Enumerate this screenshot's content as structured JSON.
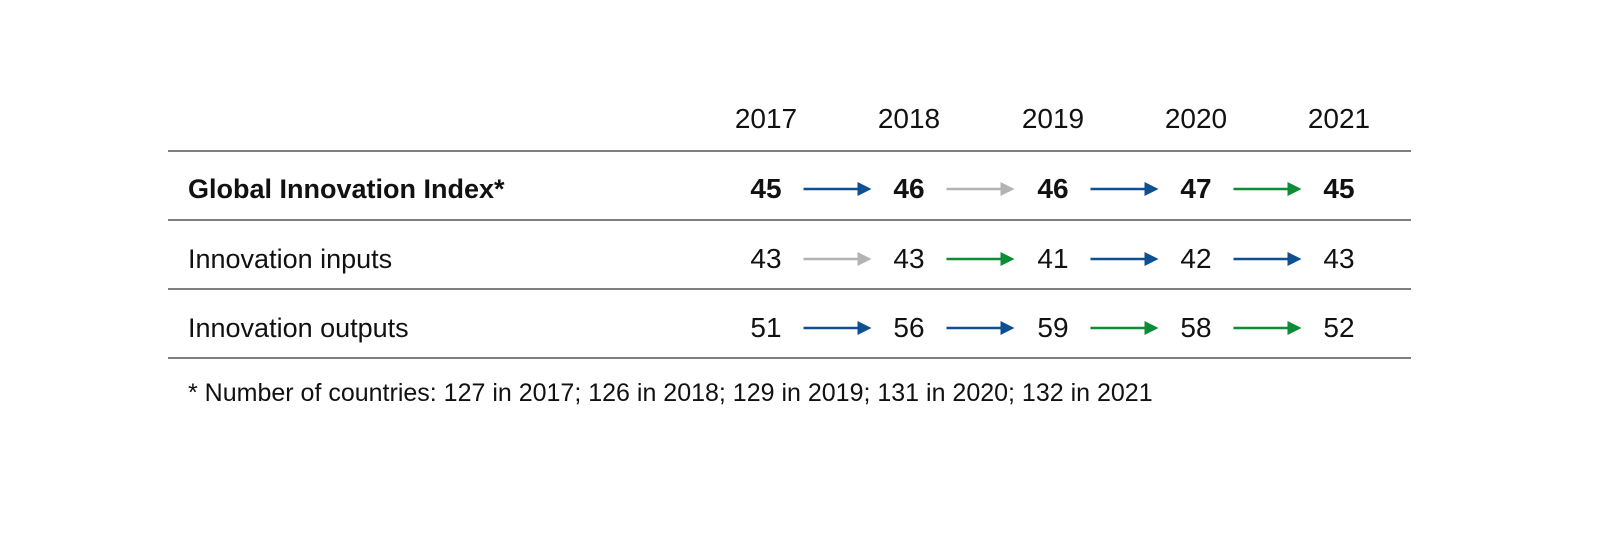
{
  "chart_data": {
    "type": "table",
    "title": "",
    "years": [
      "2017",
      "2018",
      "2019",
      "2020",
      "2021"
    ],
    "rows": [
      {
        "label": "Global Innovation Index*",
        "bold": true,
        "values": [
          45,
          46,
          46,
          47,
          45
        ],
        "arrows": [
          "blue",
          "gray",
          "blue",
          "green"
        ]
      },
      {
        "label": "Innovation inputs",
        "bold": false,
        "values": [
          43,
          43,
          41,
          42,
          43
        ],
        "arrows": [
          "gray",
          "green",
          "blue",
          "blue"
        ]
      },
      {
        "label": "Innovation outputs",
        "bold": false,
        "values": [
          51,
          56,
          59,
          58,
          52
        ],
        "arrows": [
          "blue",
          "blue",
          "green",
          "green"
        ]
      }
    ],
    "footnote": "* Number of countries: 127 in 2017; 126 in 2018; 129 in 2019; 131 in 2020; 132 in 2021"
  },
  "colors": {
    "blue": "#0d4f91",
    "green": "#0c8c36",
    "gray": "#b3b3b3",
    "rule": "#333333",
    "text": "#111111"
  },
  "icons": {
    "arrow": "right-arrow-icon"
  }
}
